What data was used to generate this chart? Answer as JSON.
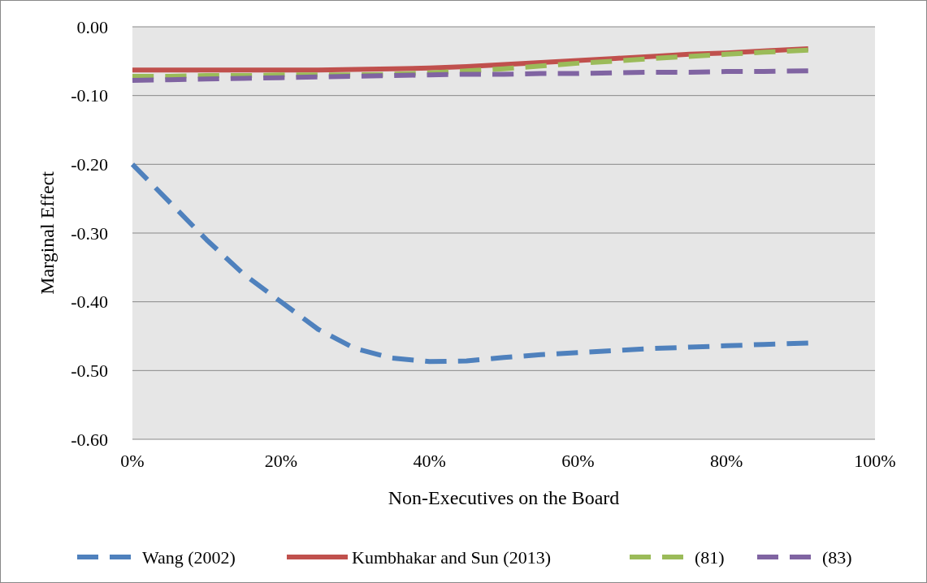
{
  "chart_data": {
    "type": "line",
    "xlabel": "Non-Executives on the Board",
    "ylabel": "Marginal Effect",
    "x": [
      0,
      5,
      10,
      15,
      20,
      25,
      30,
      35,
      40,
      45,
      50,
      55,
      60,
      65,
      70,
      75,
      80,
      85,
      91
    ],
    "series": [
      {
        "name": "Wang (2002)",
        "color": "#4f81bd",
        "line_style": "dashed",
        "values": [
          -0.2,
          -0.255,
          -0.31,
          -0.36,
          -0.4,
          -0.44,
          -0.468,
          -0.482,
          -0.487,
          -0.486,
          -0.481,
          -0.477,
          -0.474,
          -0.471,
          -0.468,
          -0.466,
          -0.464,
          -0.462,
          -0.46
        ]
      },
      {
        "name": "Kumbhakar and Sun (2013)",
        "color": "#c0504d",
        "line_style": "solid",
        "values": [
          -0.063,
          -0.063,
          -0.063,
          -0.063,
          -0.063,
          -0.063,
          -0.062,
          -0.061,
          -0.06,
          -0.058,
          -0.055,
          -0.052,
          -0.049,
          -0.046,
          -0.043,
          -0.04,
          -0.038,
          -0.035,
          -0.032
        ]
      },
      {
        "name": "(81)",
        "color": "#9bbb59",
        "line_style": "dashed",
        "values": [
          -0.072,
          -0.072,
          -0.071,
          -0.071,
          -0.07,
          -0.07,
          -0.07,
          -0.069,
          -0.067,
          -0.064,
          -0.061,
          -0.057,
          -0.053,
          -0.05,
          -0.046,
          -0.043,
          -0.04,
          -0.037,
          -0.034
        ]
      },
      {
        "name": "(83)",
        "color": "#8064a2",
        "line_style": "dashed",
        "values": [
          -0.078,
          -0.077,
          -0.076,
          -0.075,
          -0.074,
          -0.073,
          -0.072,
          -0.071,
          -0.07,
          -0.069,
          -0.069,
          -0.068,
          -0.068,
          -0.067,
          -0.066,
          -0.066,
          -0.065,
          -0.065,
          -0.064
        ]
      }
    ],
    "xlim": [
      0,
      100
    ],
    "xticks": [
      {
        "value": 0,
        "label": "0%"
      },
      {
        "value": 20,
        "label": "20%"
      },
      {
        "value": 40,
        "label": "40%"
      },
      {
        "value": 60,
        "label": "60%"
      },
      {
        "value": 80,
        "label": "80%"
      },
      {
        "value": 100,
        "label": "100%"
      }
    ],
    "ylim": [
      -0.6,
      0
    ],
    "yticks": [
      {
        "value": -0.6,
        "label": "-0.60"
      },
      {
        "value": -0.5,
        "label": "-0.50"
      },
      {
        "value": -0.4,
        "label": "-0.40"
      },
      {
        "value": -0.3,
        "label": "-0.30"
      },
      {
        "value": -0.2,
        "label": "-0.20"
      },
      {
        "value": -0.1,
        "label": "-0.10"
      },
      {
        "value": 0,
        "label": "0.00"
      }
    ],
    "grid": "y",
    "legend": "bottom"
  }
}
